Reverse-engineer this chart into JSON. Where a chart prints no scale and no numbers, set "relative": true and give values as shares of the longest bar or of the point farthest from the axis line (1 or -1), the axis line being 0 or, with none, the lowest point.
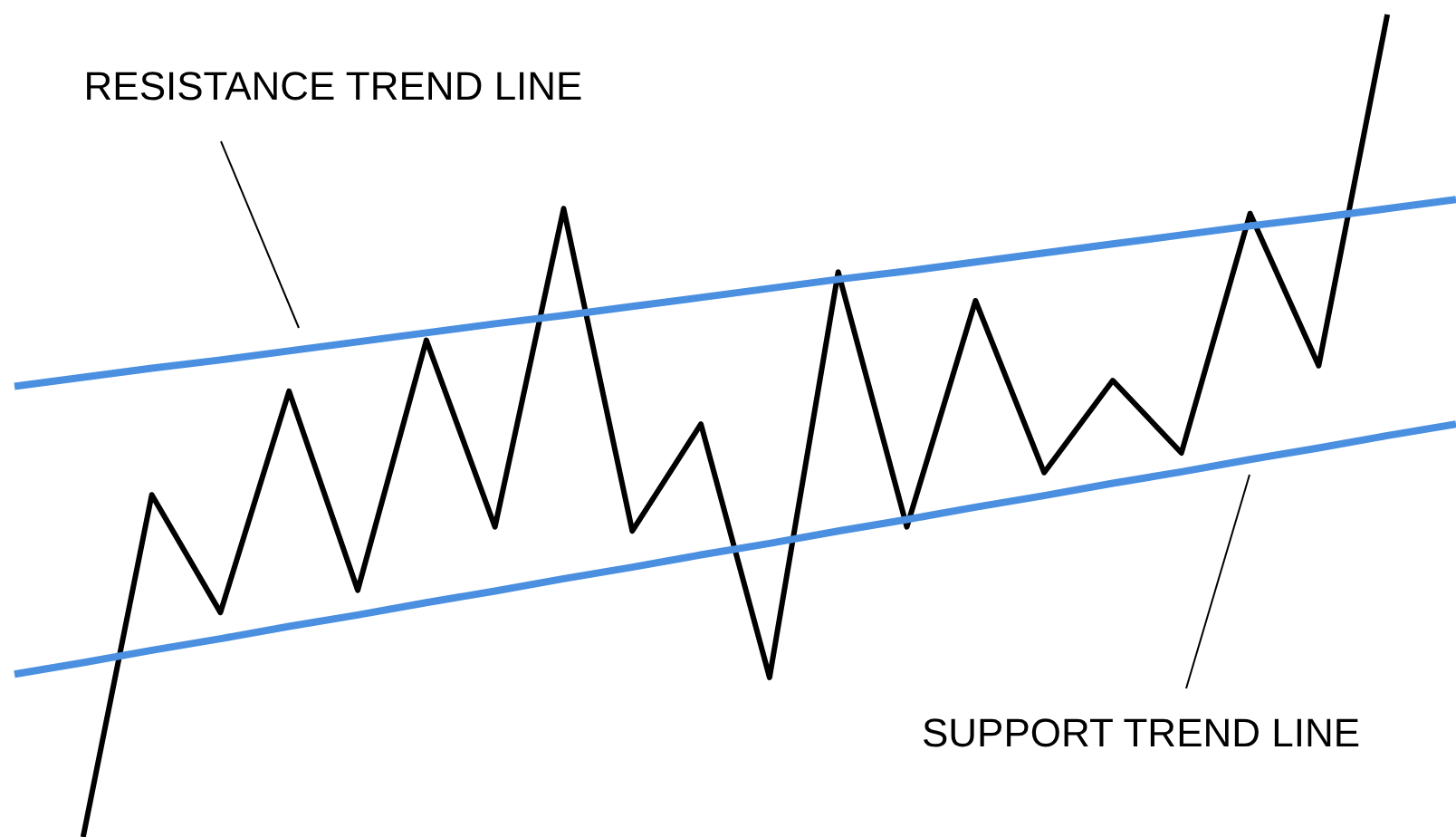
{
  "chart_data": {
    "type": "line",
    "relative": true,
    "categories": [
      null,
      null,
      null,
      null,
      null,
      null,
      null,
      null,
      null,
      null,
      null,
      null,
      null,
      null,
      null,
      null,
      null,
      null,
      null,
      null,
      null,
      null
    ],
    "series": [
      {
        "color": "#000000",
        "values": [
          null,
          0,
          0.416,
          0.273,
          0.542,
          0.3,
          0.604,
          0.377,
          0.764,
          0.372,
          0.502,
          0.194,
          0.687,
          0.377,
          0.652,
          0.443,
          0.555,
          0.467,
          0.758,
          0.573,
          1,
          null
        ]
      },
      {
        "color": "#4a8fe0",
        "values": [
          0.548,
          0.559,
          0.57,
          0.58,
          0.591,
          0.602,
          0.613,
          0.624,
          0.634,
          0.645,
          0.656,
          0.667,
          0.678,
          0.688,
          0.699,
          0.71,
          0.721,
          0.732,
          0.743,
          0.753,
          0.764,
          0.775
        ]
      },
      {
        "color": "#4a8fe0",
        "values": [
          0.198,
          0.212,
          0.227,
          0.241,
          0.256,
          0.27,
          0.285,
          0.299,
          0.314,
          0.328,
          0.343,
          0.357,
          0.372,
          0.386,
          0.401,
          0.415,
          0.43,
          0.444,
          0.459,
          0.473,
          0.488,
          0.502
        ]
      }
    ],
    "annotations": [
      "RESISTANCE TREND LINE",
      "SUPPORT TREND LINE"
    ]
  }
}
